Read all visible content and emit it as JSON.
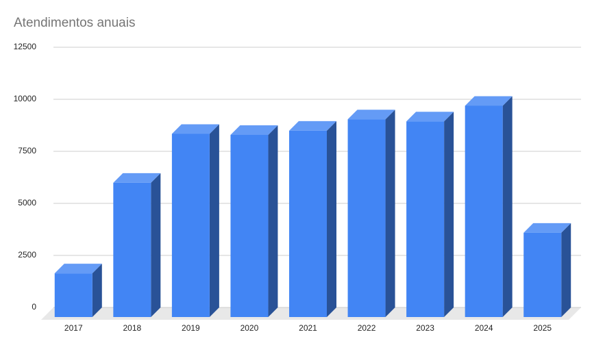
{
  "chart_data": {
    "type": "bar3d",
    "title": "Atendimentos anuais",
    "categories": [
      "2017",
      "2018",
      "2019",
      "2020",
      "2021",
      "2022",
      "2023",
      "2024",
      "2025"
    ],
    "values": [
      2100,
      6450,
      8800,
      8750,
      8950,
      9500,
      9400,
      10150,
      4050
    ],
    "color": "#4285f4",
    "ylim": [
      0,
      12500
    ],
    "yticks": [
      0,
      2500,
      5000,
      7500,
      10000,
      12500
    ],
    "grid": true
  }
}
